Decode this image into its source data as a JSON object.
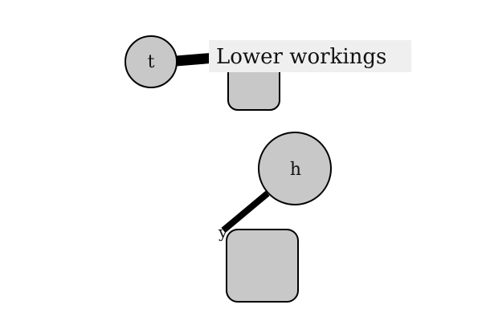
{
  "nodes": {
    "t": {
      "label": "t",
      "shape": "circle"
    },
    "h": {
      "label": "h",
      "shape": "circle"
    },
    "box_top": {
      "label": "",
      "shape": "rounded-rect"
    },
    "box_bottom": {
      "label": "",
      "shape": "rounded-rect"
    }
  },
  "edges": [
    {
      "from": "t",
      "to": "box_top"
    },
    {
      "from": "h",
      "to": "box_bottom"
    }
  ],
  "callout": {
    "text": "Lower workings"
  },
  "edge_end_label": "y",
  "colors": {
    "node_fill": "#c8c8c8",
    "stroke": "#000000",
    "callout_bg": "#efefef"
  }
}
